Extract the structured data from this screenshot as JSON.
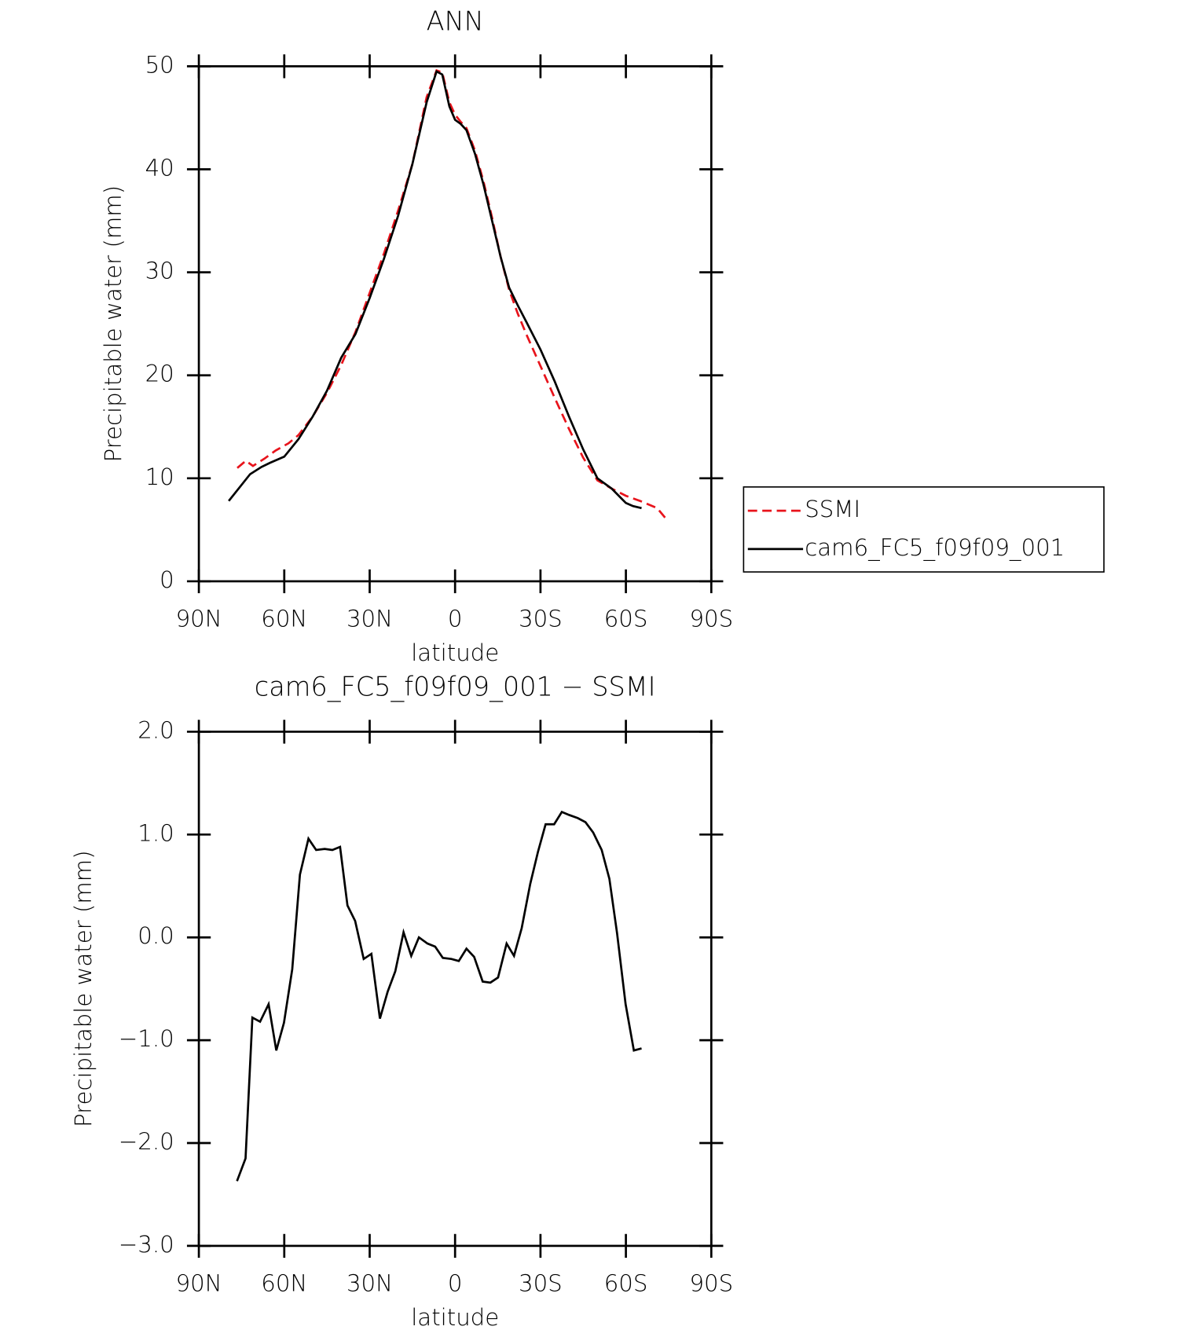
{
  "chart_data": [
    {
      "type": "line",
      "title": "ANN",
      "xlabel": "latitude",
      "ylabel": "Precipitable water (mm)",
      "xlim": [
        90,
        -90
      ],
      "xticks": [
        {
          "value": 90,
          "label": "90N"
        },
        {
          "value": 60,
          "label": "60N"
        },
        {
          "value": 30,
          "label": "30N"
        },
        0,
        {
          "value": -30,
          "label": "30S"
        },
        {
          "value": -60,
          "label": "60S"
        },
        {
          "value": -90,
          "label": "90S"
        }
      ],
      "ylim": [
        0,
        50
      ],
      "yticks": [
        0,
        10,
        20,
        30,
        40,
        50
      ],
      "series": [
        {
          "name": "SSMI",
          "color": "#e8141c",
          "line_style": "dashed",
          "x": [
            76.5,
            73.5,
            71,
            67,
            63,
            58.5,
            55,
            50,
            45,
            40,
            35,
            30,
            25,
            20,
            15,
            10,
            6.5,
            4.5,
            2,
            0,
            -2,
            -4,
            -7,
            -10,
            -13,
            -16,
            -19,
            -22,
            -25,
            -30,
            -35,
            -40,
            -45,
            -50,
            -55,
            -60,
            -65,
            -71,
            -74
          ],
          "values": [
            11.0,
            11.7,
            11.2,
            11.9,
            12.7,
            13.4,
            14.2,
            16.0,
            18.3,
            21.0,
            24.2,
            28.0,
            31.8,
            36.0,
            40.5,
            47.0,
            49.6,
            49.4,
            46.5,
            45.3,
            44.6,
            44.0,
            41.8,
            38.8,
            35.3,
            31.5,
            28.3,
            26.0,
            24.0,
            20.9,
            17.8,
            14.8,
            12.0,
            9.8,
            9.0,
            8.3,
            7.8,
            7.1,
            6.1
          ]
        },
        {
          "name": "cam6_FC5_f09f09_001",
          "color": "#000000",
          "line_style": "solid",
          "x": [
            79.5,
            72,
            68,
            65,
            60,
            55,
            50,
            45,
            40,
            35,
            30,
            25,
            20,
            15,
            10,
            6.5,
            4.5,
            2,
            0,
            -2,
            -4,
            -7,
            -10,
            -13,
            -16,
            -19,
            -22,
            -25,
            -30,
            -35,
            -40,
            -45,
            -50,
            -55,
            -60,
            -62.5,
            -65.5
          ],
          "values": [
            7.8,
            10.4,
            11.1,
            11.5,
            12.1,
            13.8,
            16.0,
            18.5,
            21.7,
            24.0,
            27.5,
            31.3,
            35.5,
            40.5,
            46.5,
            49.5,
            49.2,
            46.1,
            44.8,
            44.4,
            43.8,
            41.5,
            38.5,
            35.0,
            31.5,
            28.5,
            26.8,
            25.2,
            22.5,
            19.4,
            16.0,
            12.8,
            10.0,
            9.0,
            7.6,
            7.3,
            7.1
          ]
        }
      ]
    },
    {
      "type": "line",
      "title": "cam6_FC5_f09f09_001 − SSMI",
      "xlabel": "latitude",
      "ylabel": "Precipitable water (mm)",
      "xlim": [
        90,
        -90
      ],
      "xticks": [
        {
          "value": 90,
          "label": "90N"
        },
        {
          "value": 60,
          "label": "60N"
        },
        {
          "value": 30,
          "label": "30N"
        },
        0,
        {
          "value": -30,
          "label": "30S"
        },
        {
          "value": -60,
          "label": "60S"
        },
        {
          "value": -90,
          "label": "90S"
        }
      ],
      "ylim": [
        -3,
        2
      ],
      "yticks": [
        {
          "value": -3,
          "label": "−3.0"
        },
        {
          "value": -2,
          "label": "−2.0"
        },
        {
          "value": -1,
          "label": "−1.0"
        },
        {
          "value": 0,
          "label": "0.0"
        },
        {
          "value": 1,
          "label": "1.0"
        },
        {
          "value": 2,
          "label": "2.0"
        }
      ],
      "series": [
        {
          "color": "#000000",
          "line_style": "solid",
          "x": [
            76.6,
            73.6,
            71.2,
            68.5,
            65.5,
            62.8,
            60.1,
            57.2,
            54.5,
            51.5,
            48.8,
            45.8,
            43.1,
            40.4,
            37.8,
            35.1,
            32.1,
            29.4,
            26.4,
            23.7,
            21.0,
            18.1,
            15.4,
            12.7,
            9.7,
            7.0,
            4.3,
            1.3,
            -1.3,
            -4.0,
            -6.7,
            -9.7,
            -12.4,
            -15.1,
            -18.1,
            -20.7,
            -23.4,
            -26.4,
            -29.1,
            -31.8,
            -34.8,
            -37.5,
            -40.1,
            -43.1,
            -45.8,
            -48.5,
            -51.5,
            -54.2,
            -56.9,
            -59.9,
            -62.8,
            -65.5
          ],
          "values": [
            -2.37,
            -2.15,
            -0.78,
            -0.82,
            -0.65,
            -1.1,
            -0.83,
            -0.31,
            0.61,
            0.96,
            0.85,
            0.86,
            0.85,
            0.88,
            0.31,
            0.16,
            -0.21,
            -0.16,
            -0.79,
            -0.53,
            -0.33,
            0.05,
            -0.18,
            0.0,
            -0.06,
            -0.09,
            -0.2,
            -0.21,
            -0.23,
            -0.11,
            -0.19,
            -0.43,
            -0.44,
            -0.39,
            -0.06,
            -0.18,
            0.09,
            0.52,
            0.83,
            1.1,
            1.1,
            1.22,
            1.19,
            1.16,
            1.12,
            1.02,
            0.85,
            0.57,
            0.04,
            -0.65,
            -1.1,
            -1.08
          ]
        }
      ]
    }
  ]
}
